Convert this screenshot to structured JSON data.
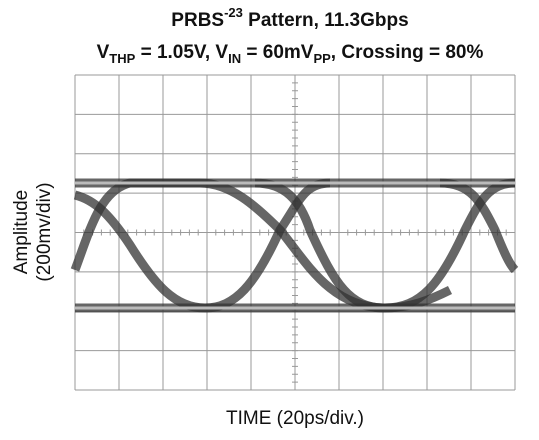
{
  "chart_data": {
    "type": "eye-diagram",
    "title": {
      "line1": [
        "PRBS",
        "-23",
        " Pattern, 11.3Gbps"
      ],
      "line2": [
        "V",
        "THP",
        " = 1.05V, V",
        "IN",
        " = 60mV",
        "PP",
        ", Crossing = 80%"
      ]
    },
    "ylabel": [
      "Amplitude",
      "(200mv/div)"
    ],
    "xlabel": "TIME (20ps/div.)"
  }
}
